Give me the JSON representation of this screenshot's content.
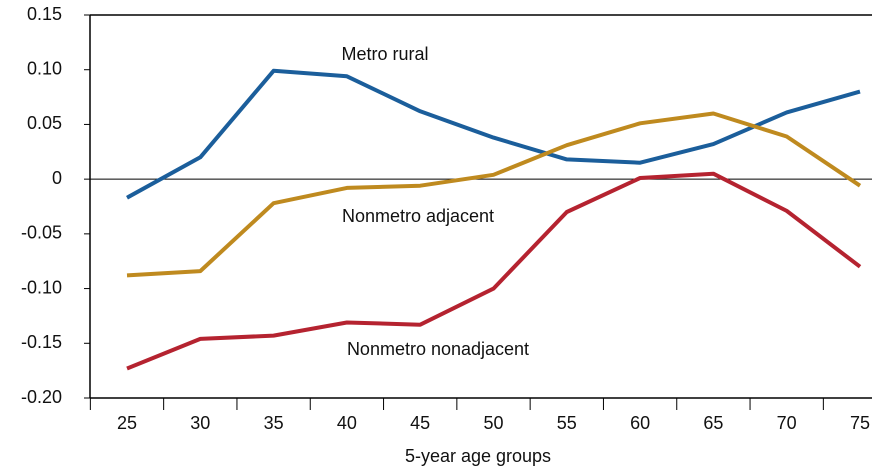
{
  "chart_data": {
    "type": "line",
    "x_label": "5-year age groups",
    "categories": [
      "25",
      "30",
      "35",
      "40",
      "45",
      "50",
      "55",
      "60",
      "65",
      "70",
      "75"
    ],
    "series": [
      {
        "name": "Metro rural",
        "color": "#1b5e9b",
        "values": [
          -0.017,
          0.02,
          0.099,
          0.094,
          0.062,
          0.038,
          0.018,
          0.015,
          0.032,
          0.061,
          0.08
        ]
      },
      {
        "name": "Nonmetro adjacent",
        "color": "#bf8a1f",
        "values": [
          -0.088,
          -0.084,
          -0.022,
          -0.008,
          -0.006,
          0.004,
          0.031,
          0.051,
          0.06,
          0.039,
          -0.006
        ]
      },
      {
        "name": "Nonmetro nonadjacent",
        "color": "#b52330",
        "values": [
          -0.173,
          -0.146,
          -0.143,
          -0.131,
          -0.133,
          -0.1,
          -0.03,
          0.001,
          0.005,
          -0.029,
          -0.08
        ]
      }
    ],
    "ylim": [
      -0.2,
      0.15
    ],
    "yticks": [
      {
        "value": -0.2,
        "label": "-0.20"
      },
      -0.15,
      {
        "value": -0.1,
        "label": "-0.10"
      },
      -0.05,
      0,
      0.05,
      {
        "value": 0.1,
        "label": "0.10"
      },
      0.15
    ],
    "zero_line": true
  }
}
